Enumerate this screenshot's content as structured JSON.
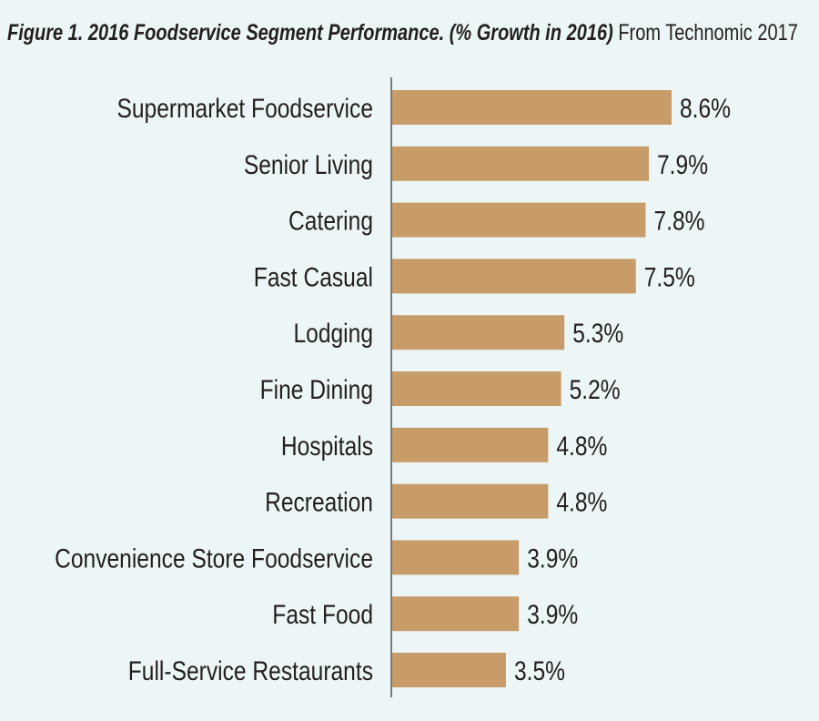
{
  "chart_data": {
    "type": "bar",
    "orientation": "horizontal",
    "title": "Figure 1. 2016 Foodservice Segment Performance. (% Growth in 2016)",
    "subtitle": "From Technomic 2017",
    "categories": [
      "Supermarket Foodservice",
      "Senior Living",
      "Catering",
      "Fast Casual",
      "Lodging",
      "Fine Dining",
      "Hospitals",
      "Recreation",
      "Convenience Store Foodservice",
      "Fast Food",
      "Full-Service Restaurants"
    ],
    "values": [
      8.6,
      7.9,
      7.8,
      7.5,
      5.3,
      5.2,
      4.8,
      4.8,
      3.9,
      3.9,
      3.5
    ],
    "data_labels": [
      "8.6%",
      "7.9%",
      "7.8%",
      "7.5%",
      "5.3%",
      "5.2%",
      "4.8%",
      "4.8%",
      "3.9%",
      "3.9%",
      "3.5%"
    ],
    "xlim": [
      0,
      8.6
    ],
    "grid": false,
    "legend": "none",
    "bar_color": "#c89c68",
    "background": "#edf6f7"
  }
}
